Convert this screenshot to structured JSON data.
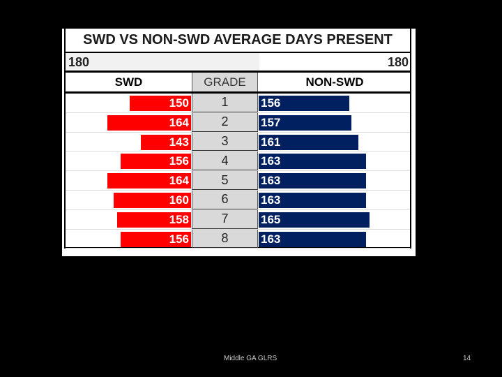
{
  "chart_data": {
    "type": "bar",
    "subtype": "back-to-back horizontal bar (butterfly)",
    "title": "SWD VS NON-SWD AVERAGE DAYS PRESENT",
    "scale_left": "180",
    "scale_right": "180",
    "xlim": [
      0,
      180
    ],
    "column_headers": [
      "SWD",
      "GRADE",
      "NON-SWD"
    ],
    "categories": [
      "1",
      "2",
      "3",
      "4",
      "5",
      "6",
      "7",
      "8"
    ],
    "series": [
      {
        "name": "SWD",
        "color": "#ff0000",
        "values": [
          150,
          164,
          143,
          156,
          164,
          160,
          158,
          156
        ]
      },
      {
        "name": "NON-SWD",
        "color": "#002060",
        "values": [
          156,
          157,
          161,
          163,
          163,
          163,
          165,
          163
        ]
      }
    ]
  },
  "footer": {
    "text": "Middle GA GLRS",
    "page": "14"
  }
}
